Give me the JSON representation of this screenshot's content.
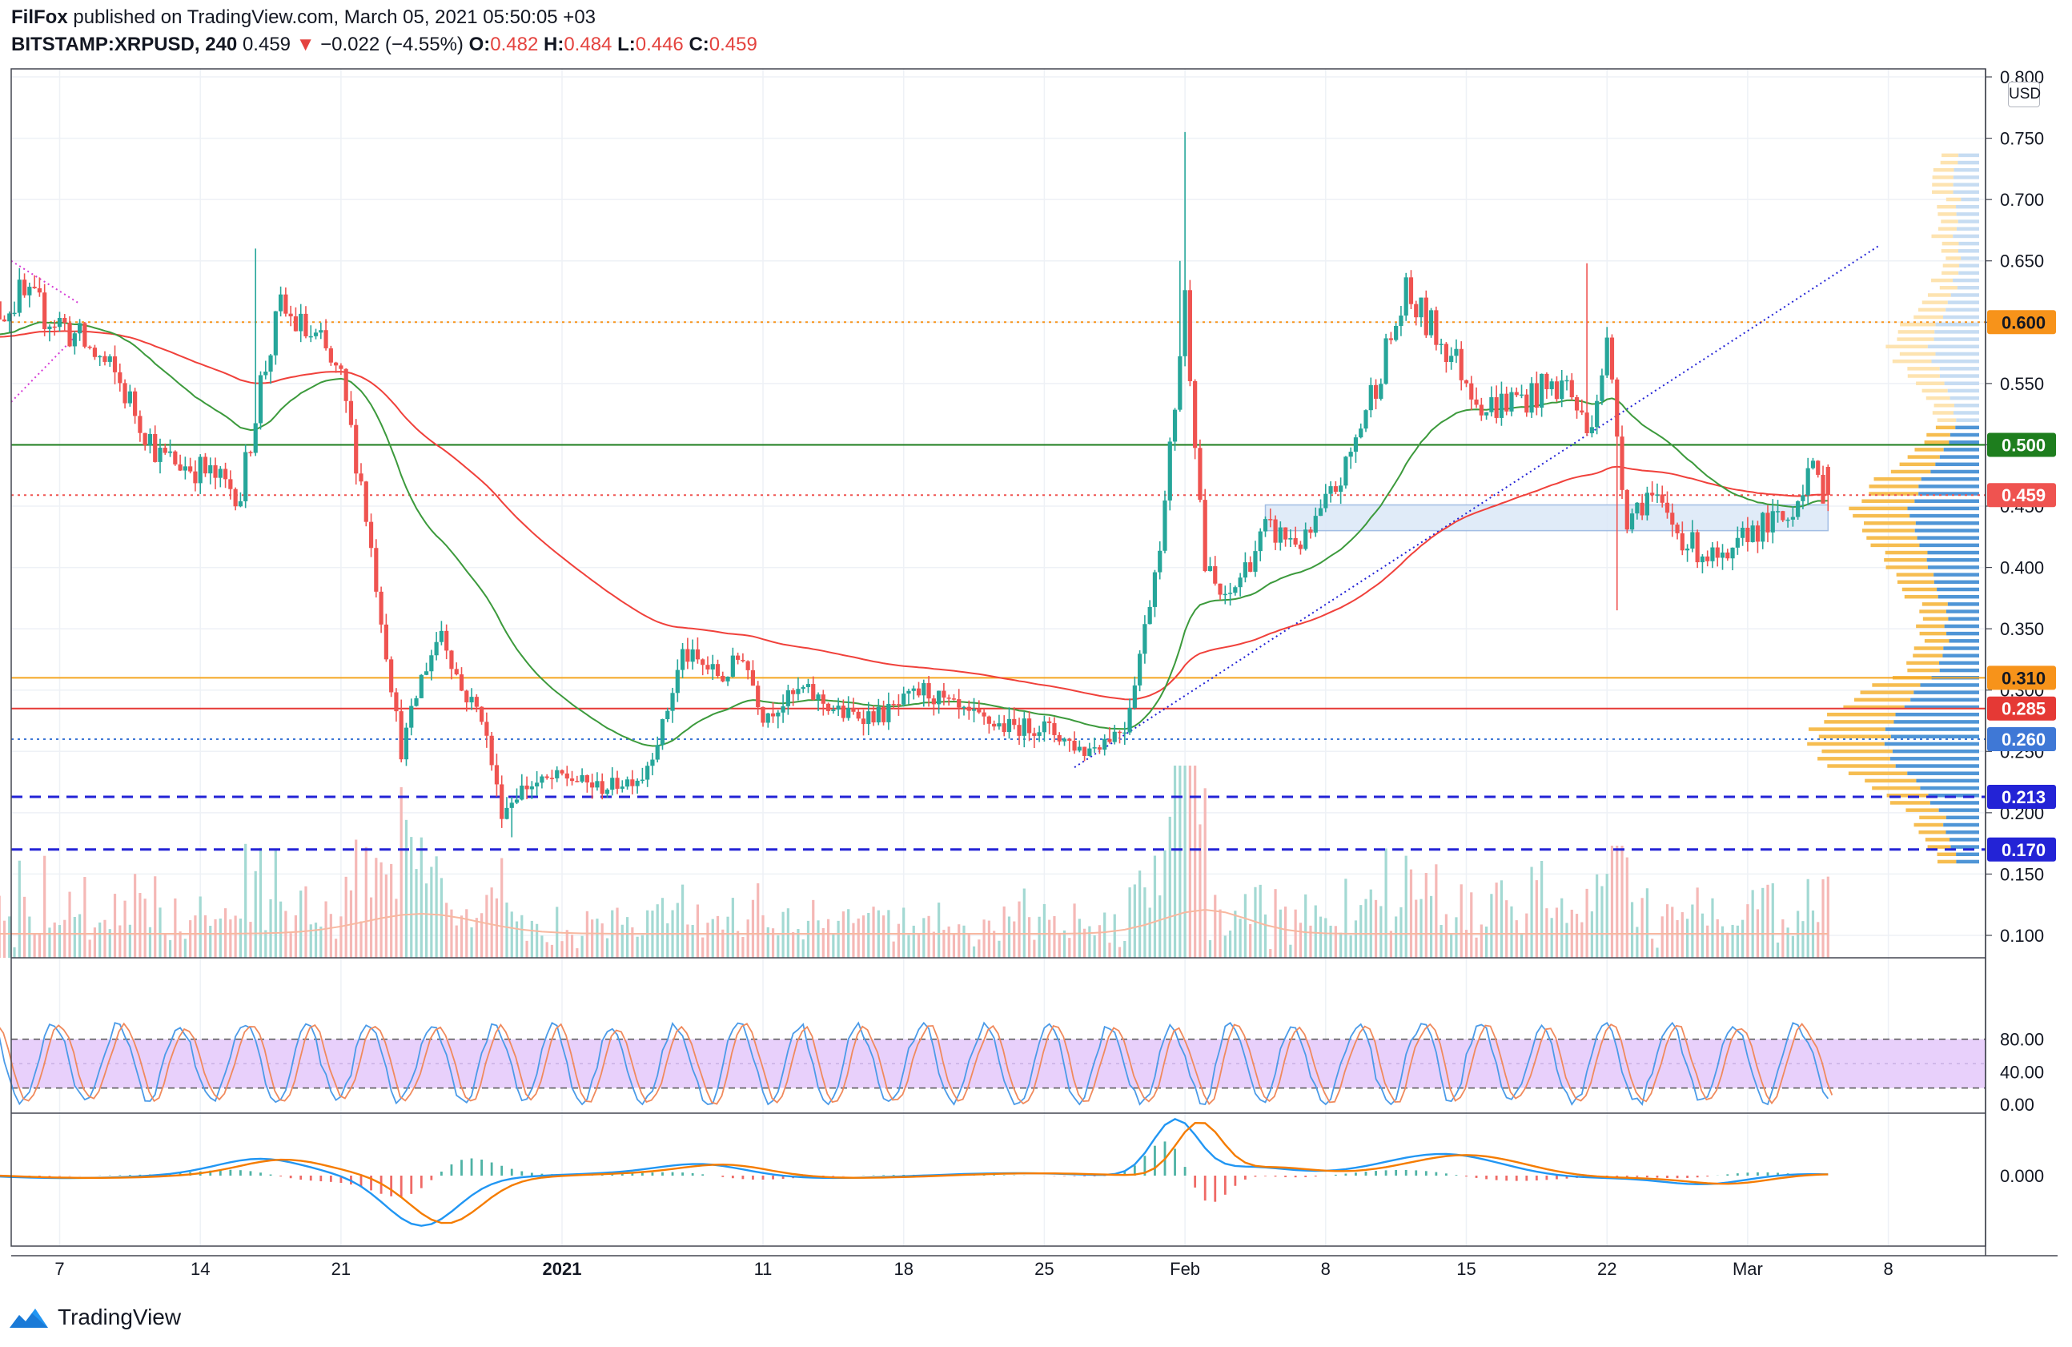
{
  "header": {
    "author": "FilFox",
    "published_text": "published on TradingView.com, March 05, 2021 05:50:05 +03",
    "symbol": "BITSTAMP:XRPUSD, 240",
    "last": "0.459",
    "change_arrow": "▼",
    "change": "−0.022 (−4.55%)",
    "o_label": "O:",
    "o_value": "0.482",
    "h_label": "H:",
    "h_value": "0.484",
    "l_label": "L:",
    "l_value": "0.446",
    "c_label": "C:",
    "c_value": "0.459"
  },
  "currency": "USD",
  "footer": {
    "brand": "TradingView",
    "logo_icon": "tradingview-logo-icon"
  },
  "colors": {
    "up": "#26a69a",
    "down": "#ef5350",
    "ma_red": "#f0413b",
    "ma_green": "#3c9a3c",
    "level_orange": "#f7931a",
    "level_green": "#1e7e1e",
    "level_red": "#e53935",
    "level_blue_dots": "#3f78d6",
    "level_navy": "#2323d6",
    "stoch_band": "#e8d0fb",
    "macd_blue": "#2196f3",
    "macd_orange": "#f57c00"
  },
  "chart_data": {
    "type": "candlestick",
    "interval": "240",
    "ylim": [
      0.08,
      0.8
    ],
    "y_ticks": [
      "0.800",
      "0.750",
      "0.700",
      "0.650",
      "0.600",
      "0.550",
      "0.500",
      "0.450",
      "0.400",
      "0.350",
      "0.300",
      "0.250",
      "0.200",
      "0.150",
      "0.100"
    ],
    "x_ticks": [
      "7",
      "14",
      "21",
      "2021",
      "11",
      "18",
      "25",
      "Feb",
      "8",
      "15",
      "22",
      "Mar",
      "8"
    ],
    "levels": [
      {
        "label": "0.600",
        "price": 0.6,
        "style": "dotted",
        "color": "#f7931a",
        "badge_bg": "#f7931a",
        "badge_fg": "#131722"
      },
      {
        "label": "0.500",
        "price": 0.5,
        "style": "solid",
        "color": "#1e7e1e",
        "badge_bg": "#1e7e1e",
        "badge_fg": "#ffffff"
      },
      {
        "label": "0.459",
        "price": 0.459,
        "style": "dotted",
        "color": "#ef5350",
        "badge_bg": "#ef5350",
        "badge_fg": "#ffffff"
      },
      {
        "label": "0.310",
        "price": 0.31,
        "style": "solid",
        "color": "#f5a623",
        "badge_bg": "#f7931a",
        "badge_fg": "#131722"
      },
      {
        "label": "0.285",
        "price": 0.285,
        "style": "solid",
        "color": "#e53935",
        "badge_bg": "#e53935",
        "badge_fg": "#ffffff"
      },
      {
        "label": "0.260",
        "price": 0.26,
        "style": "dotted",
        "color": "#3f78d6",
        "badge_bg": "#3f78d6",
        "badge_fg": "#ffffff"
      },
      {
        "label": "0.213",
        "price": 0.213,
        "style": "dashed",
        "color": "#2323d6",
        "badge_bg": "#2323d6",
        "badge_fg": "#ffffff"
      },
      {
        "label": "0.170",
        "price": 0.17,
        "style": "dashed",
        "color": "#2323d6",
        "badge_bg": "#2323d6",
        "badge_fg": "#ffffff"
      }
    ],
    "zone": {
      "from_date": "Feb 5",
      "to_date": "Mar 5",
      "low": 0.43,
      "high": 0.451
    },
    "approx_close_path": [
      [
        "Dec 3",
        0.6
      ],
      [
        "Dec 5",
        0.62
      ],
      [
        "Dec 7",
        0.6
      ],
      [
        "Dec 9",
        0.57
      ],
      [
        "Dec 10",
        0.55
      ],
      [
        "Dec 12",
        0.49
      ],
      [
        "Dec 14",
        0.48
      ],
      [
        "Dec 16",
        0.46
      ],
      [
        "Dec 17",
        0.55
      ],
      [
        "Dec 18",
        0.61
      ],
      [
        "Dec 20",
        0.58
      ],
      [
        "Dec 21",
        0.55
      ],
      [
        "Dec 22",
        0.47
      ],
      [
        "Dec 23",
        0.36
      ],
      [
        "Dec 24",
        0.25
      ],
      [
        "Dec 25",
        0.31
      ],
      [
        "Dec 26",
        0.35
      ],
      [
        "Dec 27",
        0.3
      ],
      [
        "Dec 28",
        0.28
      ],
      [
        "Dec 29",
        0.2
      ],
      [
        "Dec 30",
        0.22
      ],
      [
        "Jan 1",
        0.23
      ],
      [
        "Jan 3",
        0.22
      ],
      [
        "Jan 5",
        0.23
      ],
      [
        "Jan 6",
        0.27
      ],
      [
        "Jan 7",
        0.33
      ],
      [
        "Jan 9",
        0.31
      ],
      [
        "Jan 10",
        0.33
      ],
      [
        "Jan 11",
        0.28
      ],
      [
        "Jan 13",
        0.3
      ],
      [
        "Jan 15",
        0.28
      ],
      [
        "Jan 17",
        0.28
      ],
      [
        "Jan 19",
        0.3
      ],
      [
        "Jan 21",
        0.28
      ],
      [
        "Jan 23",
        0.27
      ],
      [
        "Jan 25",
        0.27
      ],
      [
        "Jan 27",
        0.25
      ],
      [
        "Jan 29",
        0.27
      ],
      [
        "Jan 30",
        0.35
      ],
      [
        "Jan 31",
        0.45
      ],
      [
        "Feb 1",
        0.62
      ],
      [
        "Feb 2",
        0.4
      ],
      [
        "Feb 3",
        0.37
      ],
      [
        "Feb 5",
        0.43
      ],
      [
        "Feb 7",
        0.42
      ],
      [
        "Feb 9",
        0.48
      ],
      [
        "Feb 10",
        0.53
      ],
      [
        "Feb 12",
        0.62
      ],
      [
        "Feb 14",
        0.58
      ],
      [
        "Feb 16",
        0.53
      ],
      [
        "Feb 18",
        0.54
      ],
      [
        "Feb 20",
        0.55
      ],
      [
        "Feb 21",
        0.51
      ],
      [
        "Feb 22",
        0.58
      ],
      [
        "Feb 23",
        0.44
      ],
      [
        "Feb 24",
        0.46
      ],
      [
        "Feb 26",
        0.42
      ],
      [
        "Feb 28",
        0.4
      ],
      [
        "Mar 1",
        0.43
      ],
      [
        "Mar 3",
        0.44
      ],
      [
        "Mar 4",
        0.48
      ],
      [
        "Mar 5",
        0.459
      ]
    ],
    "stoch_rsi": {
      "ticks": [
        "80.00",
        "40.00",
        "0.00"
      ],
      "band": [
        20,
        80
      ]
    },
    "macd": {
      "ticks": [
        "0.000"
      ]
    }
  }
}
